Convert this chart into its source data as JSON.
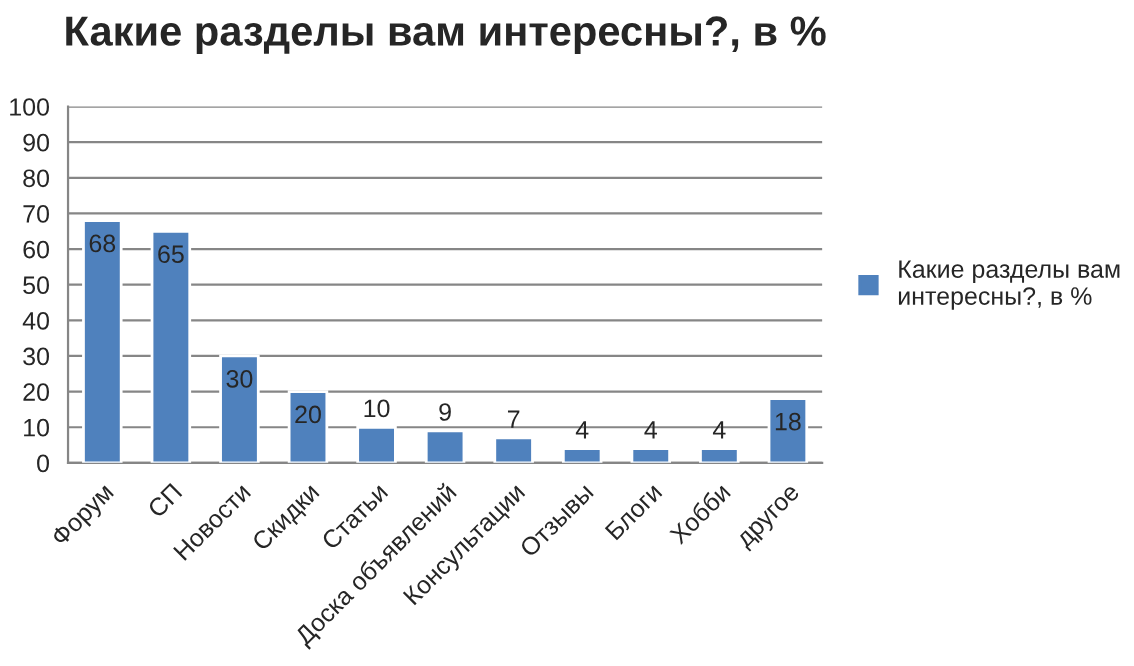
{
  "chart_data": {
    "type": "bar",
    "title": "Какие разделы вам интересны?, в %",
    "categories": [
      "Форум",
      "СП",
      "Новости",
      "Скидки",
      "Статьи",
      "Доска объявлений",
      "Консультации",
      "Отзывы",
      "Блоги",
      "Хобби",
      "другое"
    ],
    "series": [
      {
        "name": "Какие разделы вам интересны?, в %",
        "color": "#4f81bd",
        "values": [
          68,
          65,
          30,
          20,
          10,
          9,
          7,
          4,
          4,
          4,
          18
        ]
      }
    ],
    "ylim": [
      0,
      100
    ],
    "yticks": [
      0,
      10,
      20,
      30,
      40,
      50,
      60,
      70,
      80,
      90,
      100
    ],
    "grid": "y",
    "legend": "right",
    "data_labels": true
  }
}
